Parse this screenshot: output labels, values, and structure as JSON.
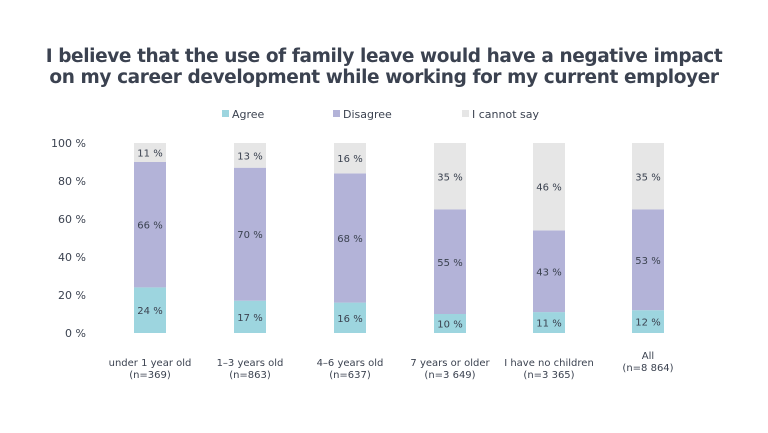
{
  "chart_data": {
    "type": "bar",
    "stacked": true,
    "title": "I believe that the use of family leave would have a negative impact on my career development while working for my current employer",
    "title_lines": [
      "I believe that the use of family leave would have a negative impact",
      "on my career development while working for my current employer"
    ],
    "categories": [
      [
        "under 1 year old",
        "(n=369)"
      ],
      [
        "1–3 years old",
        "(n=863)"
      ],
      [
        "4–6 years old",
        "(n=637)"
      ],
      [
        "7 years or older",
        "(n=3 649)"
      ],
      [
        "I have no children",
        "(n=3 365)"
      ],
      [
        "All",
        "(n=8 864)"
      ]
    ],
    "series": [
      {
        "name": "Agree",
        "color": "#9dd5df",
        "values": [
          24,
          17,
          16,
          10,
          11,
          12
        ]
      },
      {
        "name": "Disagree",
        "color": "#b3b3d8",
        "values": [
          66,
          70,
          68,
          55,
          43,
          53
        ]
      },
      {
        "name": "I cannot say",
        "color": "#e6e6e6",
        "values": [
          11,
          13,
          16,
          35,
          46,
          35
        ]
      }
    ],
    "ylim": [
      0,
      100
    ],
    "yticks": [
      "0 %",
      "20 %",
      "40 %",
      "60 %",
      "80 %",
      "100 %"
    ],
    "legend": "top",
    "grid": false,
    "label_suffix": " %"
  }
}
